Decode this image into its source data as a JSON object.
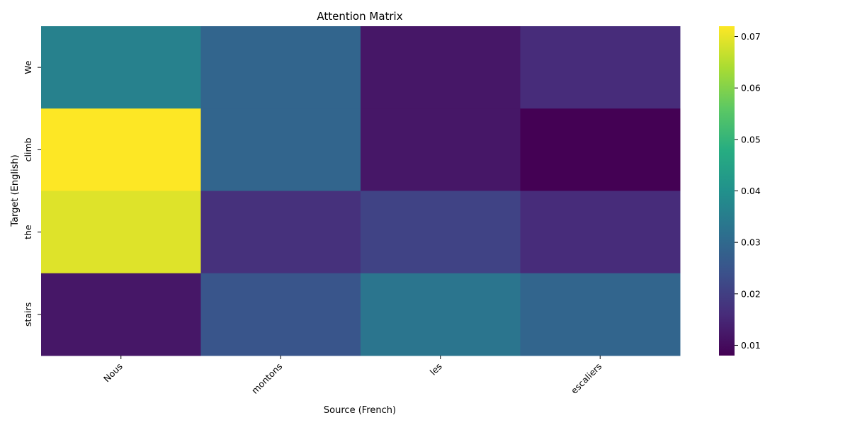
{
  "chart_data": {
    "type": "heatmap",
    "title": "Attention Matrix",
    "xlabel": "Source (French)",
    "ylabel": "Target (English)",
    "x_categories": [
      "Nous",
      "montons",
      "les",
      "escaliers"
    ],
    "y_categories": [
      "We",
      "climb",
      "the",
      "stairs"
    ],
    "values": [
      [
        0.036,
        0.029,
        0.012,
        0.016
      ],
      [
        0.072,
        0.029,
        0.012,
        0.008
      ],
      [
        0.069,
        0.017,
        0.021,
        0.016
      ],
      [
        0.012,
        0.025,
        0.033,
        0.029
      ]
    ],
    "colormap": "viridis",
    "vmin": 0.008,
    "vmax": 0.072,
    "colorbar_ticks": [
      0.01,
      0.02,
      0.03,
      0.04,
      0.05,
      0.06,
      0.07
    ],
    "colorbar_tick_labels": [
      "0.01",
      "0.02",
      "0.03",
      "0.04",
      "0.05",
      "0.06",
      "0.07"
    ]
  }
}
